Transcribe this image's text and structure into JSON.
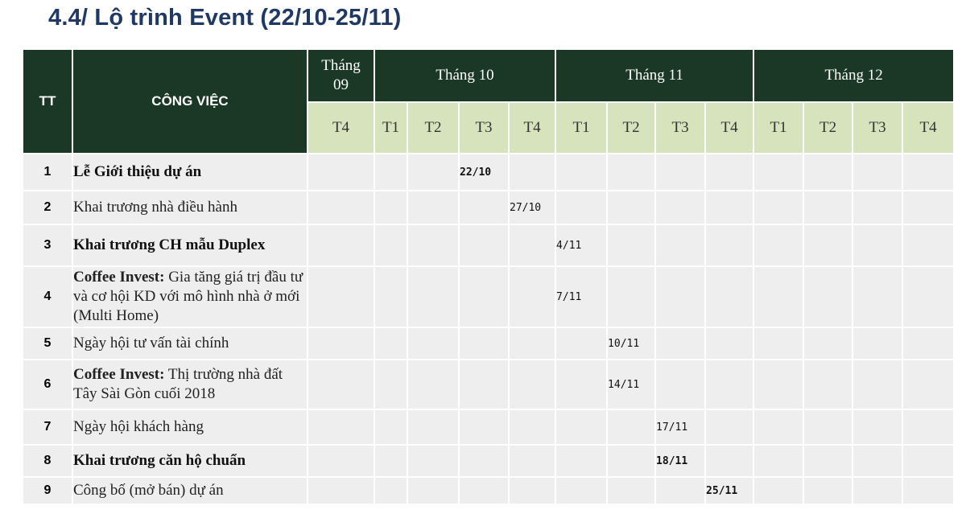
{
  "title": "4.4/ Lộ trình Event (22/10-25/11)",
  "header": {
    "tt_label": "TT",
    "task_label": "CÔNG VIỆC",
    "months": [
      {
        "label": "Tháng 09",
        "span": 1
      },
      {
        "label": "Tháng 10",
        "span": 4
      },
      {
        "label": "Tháng 11",
        "span": 4
      },
      {
        "label": "Tháng 12",
        "span": 4
      }
    ],
    "weeks": [
      "T4",
      "T1",
      "T2",
      "T3",
      "T4",
      "T1",
      "T2",
      "T3",
      "T4",
      "T1",
      "T2",
      "T3",
      "T4"
    ]
  },
  "rows": [
    {
      "num": "1",
      "bold": true,
      "task": "Lễ Giới thiệu dự án",
      "date": "22/10",
      "col": 3,
      "date_bold": true
    },
    {
      "num": "2",
      "bold": false,
      "task": "Khai trương nhà điều hành",
      "date": "27/10",
      "col": 4,
      "date_bold": false
    },
    {
      "num": "3",
      "bold": true,
      "task": "Khai trương CH mẫu Duplex",
      "date": "4/11",
      "col": 5,
      "date_bold": false
    },
    {
      "num": "4",
      "bold": false,
      "task_bold_prefix": "Coffee Invest:",
      "task": " Gia tăng giá trị đầu tư và cơ hội KD với mô hình nhà ở mới (Multi Home)",
      "date": "7/11",
      "col": 5,
      "date_bold": false
    },
    {
      "num": "5",
      "bold": false,
      "task": "Ngày hội tư vấn tài chính",
      "date": "10/11",
      "col": 6,
      "date_bold": false
    },
    {
      "num": "6",
      "bold": false,
      "task_bold_prefix": "Coffee Invest:",
      "task": " Thị trường nhà đất Tây Sài Gòn cuối 2018",
      "date": "14/11",
      "col": 6,
      "date_bold": false
    },
    {
      "num": "7",
      "bold": false,
      "task": "Ngày hội khách hàng",
      "date": "17/11",
      "col": 7,
      "date_bold": false
    },
    {
      "num": "8",
      "bold": true,
      "task": "Khai trương căn hộ chuẩn",
      "date": "18/11",
      "col": 7,
      "date_bold": true
    },
    {
      "num": "9",
      "bold": false,
      "task": "Công bố (mở bán) dự án",
      "date": "25/11",
      "col": 8,
      "date_bold": true
    }
  ]
}
